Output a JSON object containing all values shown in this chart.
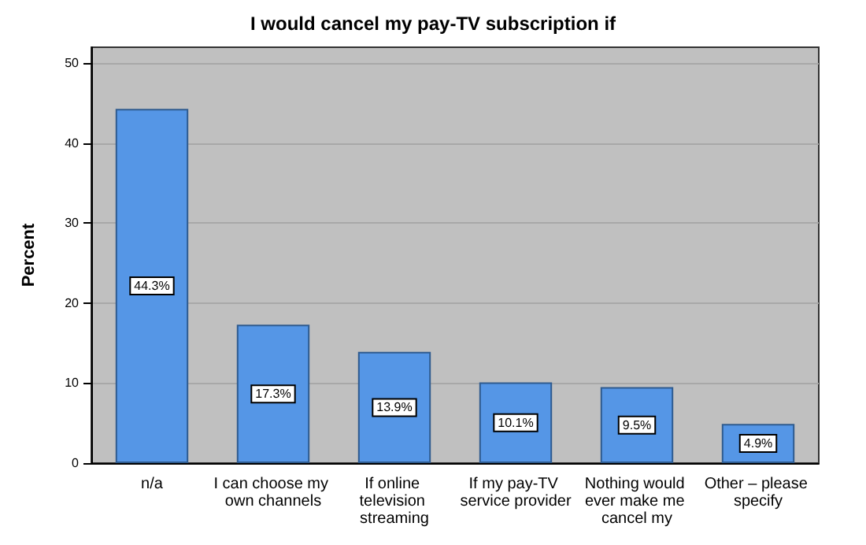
{
  "chart_data": {
    "type": "bar",
    "title": "I would cancel my pay-TV subscription if",
    "ylabel": "Percent",
    "categories": [
      "n/a",
      "I can choose my own channels",
      "If online television streaming",
      "If my pay-TV service provider",
      "Nothing would ever make me cancel my",
      "Other – please specify"
    ],
    "values": [
      44.3,
      17.3,
      13.9,
      10.1,
      9.5,
      4.9
    ],
    "value_labels": [
      "44.3%",
      "17.3%",
      "13.9%",
      "10.1%",
      "9.5%",
      "4.9%"
    ],
    "color": "#5596e6",
    "ylim": [
      0,
      52
    ],
    "yticks": [
      0,
      10,
      20,
      30,
      40,
      50
    ],
    "grid": "y"
  }
}
